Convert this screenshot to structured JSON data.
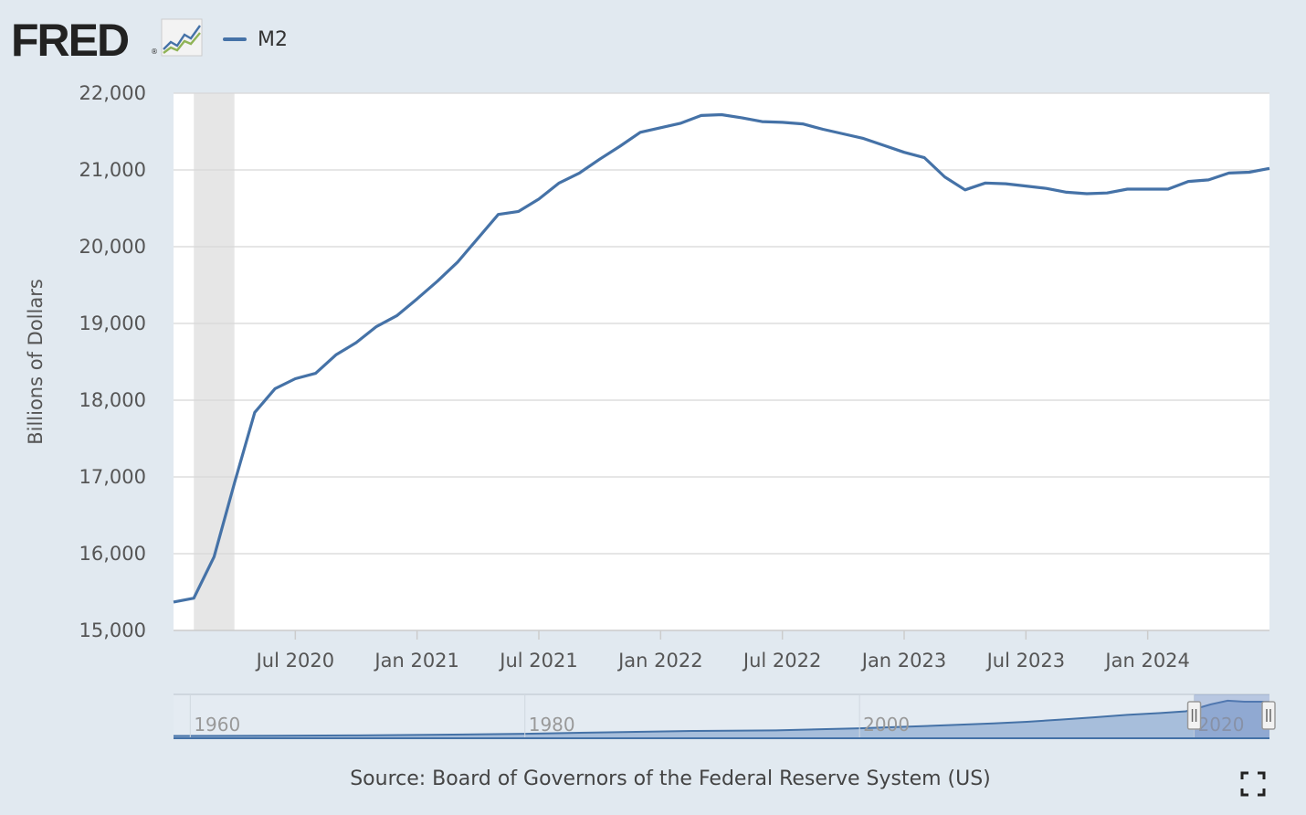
{
  "header": {
    "logo_text": "FRED",
    "logo_mark": "®",
    "legend_label": "M2"
  },
  "colors": {
    "series": "#4572a7",
    "recession": "#e6e6e6",
    "plot_bg": "#ffffff",
    "page_bg": "#e1e9f0",
    "grid": "#d8d8d8"
  },
  "source": "Source: Board of Governors of the Federal Reserve System (US)",
  "icons": {
    "logo": "line-chart-icon",
    "fullscreen": "fullscreen-icon"
  },
  "chart_data": {
    "type": "line",
    "ylabel": "Billions of Dollars",
    "ylim": [
      15000,
      22000
    ],
    "yticks": [
      15000,
      16000,
      17000,
      18000,
      19000,
      20000,
      21000,
      22000
    ],
    "ytick_labels": [
      "15,000",
      "16,000",
      "17,000",
      "18,000",
      "19,000",
      "20,000",
      "21,000",
      "22,000"
    ],
    "xlim": [
      "2020-01",
      "2024-07"
    ],
    "xticks": [
      "2020-07",
      "2021-01",
      "2021-07",
      "2022-01",
      "2022-07",
      "2023-01",
      "2023-07",
      "2024-01"
    ],
    "xtick_labels": [
      "Jul 2020",
      "Jan 2021",
      "Jul 2021",
      "Jan 2022",
      "Jul 2022",
      "Jan 2023",
      "Jul 2023",
      "Jan 2024"
    ],
    "grid": true,
    "recession_shading": [
      "2020-02",
      "2020-04"
    ],
    "series": [
      {
        "name": "M2",
        "x": [
          "2020-01",
          "2020-02",
          "2020-03",
          "2020-04",
          "2020-05",
          "2020-06",
          "2020-07",
          "2020-08",
          "2020-09",
          "2020-10",
          "2020-11",
          "2020-12",
          "2021-01",
          "2021-02",
          "2021-03",
          "2021-04",
          "2021-05",
          "2021-06",
          "2021-07",
          "2021-08",
          "2021-09",
          "2021-10",
          "2021-11",
          "2021-12",
          "2022-01",
          "2022-02",
          "2022-03",
          "2022-04",
          "2022-05",
          "2022-06",
          "2022-07",
          "2022-08",
          "2022-09",
          "2022-10",
          "2022-11",
          "2022-12",
          "2023-01",
          "2023-02",
          "2023-03",
          "2023-04",
          "2023-05",
          "2023-06",
          "2023-07",
          "2023-08",
          "2023-09",
          "2023-10",
          "2023-11",
          "2023-12",
          "2024-01",
          "2024-02",
          "2024-03",
          "2024-04",
          "2024-05",
          "2024-06",
          "2024-07"
        ],
        "values": [
          15370,
          15420,
          15960,
          16920,
          17840,
          18150,
          18280,
          18350,
          18590,
          18750,
          18960,
          19100,
          19320,
          19550,
          19800,
          20110,
          20420,
          20460,
          20620,
          20830,
          20960,
          21140,
          21310,
          21490,
          21550,
          21610,
          21710,
          21720,
          21680,
          21630,
          21620,
          21600,
          21530,
          21470,
          21410,
          21320,
          21230,
          21160,
          20910,
          20740,
          20830,
          20820,
          20790,
          20760,
          20710,
          20690,
          20700,
          20750,
          20750,
          20750,
          20850,
          20870,
          20960,
          20970,
          21020
        ]
      }
    ]
  },
  "navigator": {
    "labels": [
      "1960",
      "1980",
      "2000",
      "2020"
    ],
    "range_start": 1959,
    "range_end": 2024.5,
    "selection_start": 2020.0,
    "selection_end": 2024.5,
    "overview_values": [
      [
        1959,
        290
      ],
      [
        1965,
        450
      ],
      [
        1970,
        620
      ],
      [
        1975,
        1020
      ],
      [
        1980,
        1600
      ],
      [
        1985,
        2500
      ],
      [
        1990,
        3280
      ],
      [
        1995,
        3640
      ],
      [
        2000,
        4900
      ],
      [
        2005,
        6650
      ],
      [
        2008,
        7800
      ],
      [
        2010,
        8800
      ],
      [
        2012,
        10100
      ],
      [
        2014,
        11500
      ],
      [
        2016,
        13000
      ],
      [
        2018,
        14100
      ],
      [
        2019.5,
        15100
      ],
      [
        2020.2,
        17000
      ],
      [
        2021,
        19300
      ],
      [
        2022,
        21500
      ],
      [
        2023,
        20900
      ],
      [
        2024.5,
        20900
      ]
    ],
    "overview_max": 22000
  }
}
